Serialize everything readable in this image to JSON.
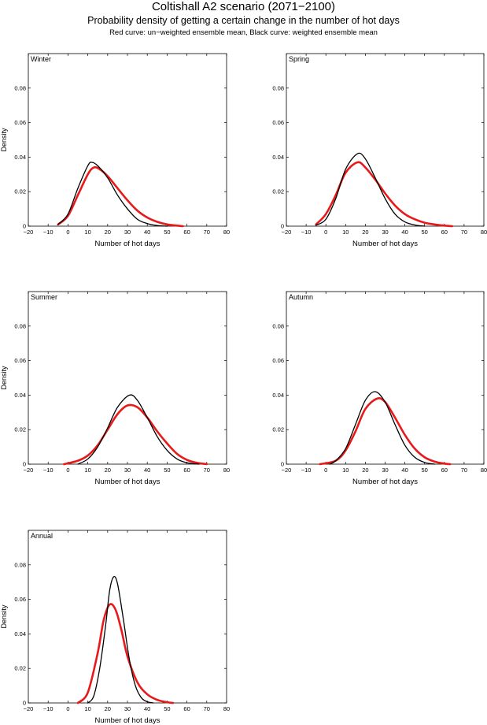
{
  "header": {
    "title": "Coltishall A2 scenario (2071−2100)",
    "subtitle": "Probability density of getting a certain change in the number of hot days",
    "note": "Red curve: un−weighted ensemble mean, Black curve: weighted ensemble mean"
  },
  "colors": {
    "unweighted": "#e8191a",
    "weighted": "#000000"
  },
  "chart_data": [
    {
      "type": "line",
      "panel": "Winter",
      "xlabel": "Number of hot days",
      "ylabel": "Density",
      "xlim": [
        -20,
        80
      ],
      "ylim": [
        0,
        0.1
      ],
      "xticks": [
        -20,
        -10,
        0,
        10,
        20,
        30,
        40,
        50,
        60,
        70,
        80
      ],
      "yticks": [
        0,
        0.02,
        0.04,
        0.06,
        0.08
      ],
      "series": [
        {
          "name": "un-weighted ensemble mean",
          "color": "#e8191a",
          "x": [
            -5,
            0,
            5,
            10,
            13,
            16,
            20,
            25,
            30,
            35,
            40,
            45,
            50,
            55,
            58
          ],
          "y": [
            0.001,
            0.006,
            0.018,
            0.03,
            0.034,
            0.033,
            0.029,
            0.022,
            0.015,
            0.009,
            0.005,
            0.0025,
            0.001,
            0.0003,
            0
          ]
        },
        {
          "name": "weighted ensemble mean",
          "color": "#000000",
          "x": [
            -5,
            0,
            5,
            10,
            12,
            15,
            20,
            25,
            30,
            35,
            40,
            45,
            50
          ],
          "y": [
            0.001,
            0.007,
            0.022,
            0.035,
            0.037,
            0.035,
            0.028,
            0.018,
            0.01,
            0.004,
            0.0015,
            0.0004,
            0
          ]
        }
      ]
    },
    {
      "type": "line",
      "panel": "Spring",
      "xlabel": "Number of hot days",
      "ylabel": "",
      "xlim": [
        -20,
        80
      ],
      "ylim": [
        0,
        0.1
      ],
      "xticks": [
        -20,
        -10,
        0,
        10,
        20,
        30,
        40,
        50,
        60,
        70,
        80
      ],
      "yticks": [
        0,
        0.02,
        0.04,
        0.06,
        0.08
      ],
      "series": [
        {
          "name": "un-weighted ensemble mean",
          "color": "#e8191a",
          "x": [
            -5,
            0,
            5,
            10,
            16,
            20,
            25,
            30,
            35,
            40,
            45,
            50,
            55,
            60,
            64
          ],
          "y": [
            0.001,
            0.007,
            0.018,
            0.031,
            0.037,
            0.034,
            0.027,
            0.019,
            0.012,
            0.007,
            0.004,
            0.002,
            0.001,
            0.0003,
            0
          ]
        },
        {
          "name": "weighted ensemble mean",
          "color": "#000000",
          "x": [
            -5,
            0,
            5,
            10,
            16,
            20,
            25,
            30,
            35,
            40,
            45,
            50
          ],
          "y": [
            0.0005,
            0.004,
            0.016,
            0.033,
            0.042,
            0.039,
            0.028,
            0.016,
            0.007,
            0.0025,
            0.0007,
            0
          ]
        }
      ]
    },
    {
      "type": "line",
      "panel": "Summer",
      "xlabel": "Number of hot days",
      "ylabel": "Density",
      "xlim": [
        -20,
        80
      ],
      "ylim": [
        0,
        0.1
      ],
      "xticks": [
        -20,
        -10,
        0,
        10,
        20,
        30,
        40,
        50,
        60,
        70,
        80
      ],
      "yticks": [
        0,
        0.02,
        0.04,
        0.06,
        0.08
      ],
      "series": [
        {
          "name": "un-weighted ensemble mean",
          "color": "#e8191a",
          "x": [
            -2,
            5,
            10,
            15,
            20,
            25,
            30,
            35,
            40,
            45,
            50,
            55,
            60,
            65,
            70
          ],
          "y": [
            0,
            0.002,
            0.005,
            0.011,
            0.02,
            0.029,
            0.034,
            0.033,
            0.027,
            0.019,
            0.012,
            0.006,
            0.0025,
            0.0008,
            0
          ]
        },
        {
          "name": "weighted ensemble mean",
          "color": "#000000",
          "x": [
            5,
            10,
            15,
            20,
            25,
            31,
            35,
            40,
            45,
            50,
            55,
            60,
            66
          ],
          "y": [
            0,
            0.003,
            0.01,
            0.021,
            0.033,
            0.04,
            0.037,
            0.027,
            0.016,
            0.008,
            0.003,
            0.0008,
            0
          ]
        }
      ]
    },
    {
      "type": "line",
      "panel": "Autumn",
      "xlabel": "Number of hot days",
      "ylabel": "",
      "xlim": [
        -20,
        80
      ],
      "ylim": [
        0,
        0.1
      ],
      "xticks": [
        -20,
        -10,
        0,
        10,
        20,
        30,
        40,
        50,
        60,
        70,
        80
      ],
      "yticks": [
        0,
        0.02,
        0.04,
        0.06,
        0.08
      ],
      "series": [
        {
          "name": "un-weighted ensemble mean",
          "color": "#e8191a",
          "x": [
            -3,
            5,
            10,
            15,
            20,
            26,
            30,
            35,
            40,
            45,
            50,
            55,
            60,
            63
          ],
          "y": [
            0,
            0.002,
            0.008,
            0.019,
            0.032,
            0.038,
            0.036,
            0.027,
            0.017,
            0.009,
            0.004,
            0.0015,
            0.0003,
            0
          ]
        },
        {
          "name": "weighted ensemble mean",
          "color": "#000000",
          "x": [
            2,
            5,
            10,
            15,
            20,
            25,
            30,
            35,
            40,
            45,
            50,
            55
          ],
          "y": [
            0,
            0.002,
            0.009,
            0.023,
            0.037,
            0.042,
            0.036,
            0.023,
            0.011,
            0.004,
            0.001,
            0
          ]
        }
      ]
    },
    {
      "type": "line",
      "panel": "Annual",
      "xlabel": "Number of hot days",
      "ylabel": "Density",
      "xlim": [
        -20,
        80
      ],
      "ylim": [
        0,
        0.1
      ],
      "xticks": [
        -20,
        -10,
        0,
        10,
        20,
        30,
        40,
        50,
        60,
        70,
        80
      ],
      "yticks": [
        0,
        0.02,
        0.04,
        0.06,
        0.08
      ],
      "series": [
        {
          "name": "un-weighted ensemble mean",
          "color": "#e8191a",
          "x": [
            5,
            10,
            15,
            18,
            21,
            24,
            27,
            30,
            35,
            40,
            45,
            50,
            53
          ],
          "y": [
            0,
            0.006,
            0.029,
            0.048,
            0.057,
            0.054,
            0.042,
            0.027,
            0.012,
            0.005,
            0.0018,
            0.0004,
            0
          ]
        },
        {
          "name": "weighted ensemble mean",
          "color": "#000000",
          "x": [
            10,
            13,
            16,
            19,
            21,
            23,
            25,
            28,
            31,
            34,
            37,
            40,
            43
          ],
          "y": [
            0,
            0.004,
            0.02,
            0.045,
            0.065,
            0.073,
            0.069,
            0.048,
            0.025,
            0.01,
            0.003,
            0.0007,
            0
          ]
        }
      ]
    }
  ]
}
